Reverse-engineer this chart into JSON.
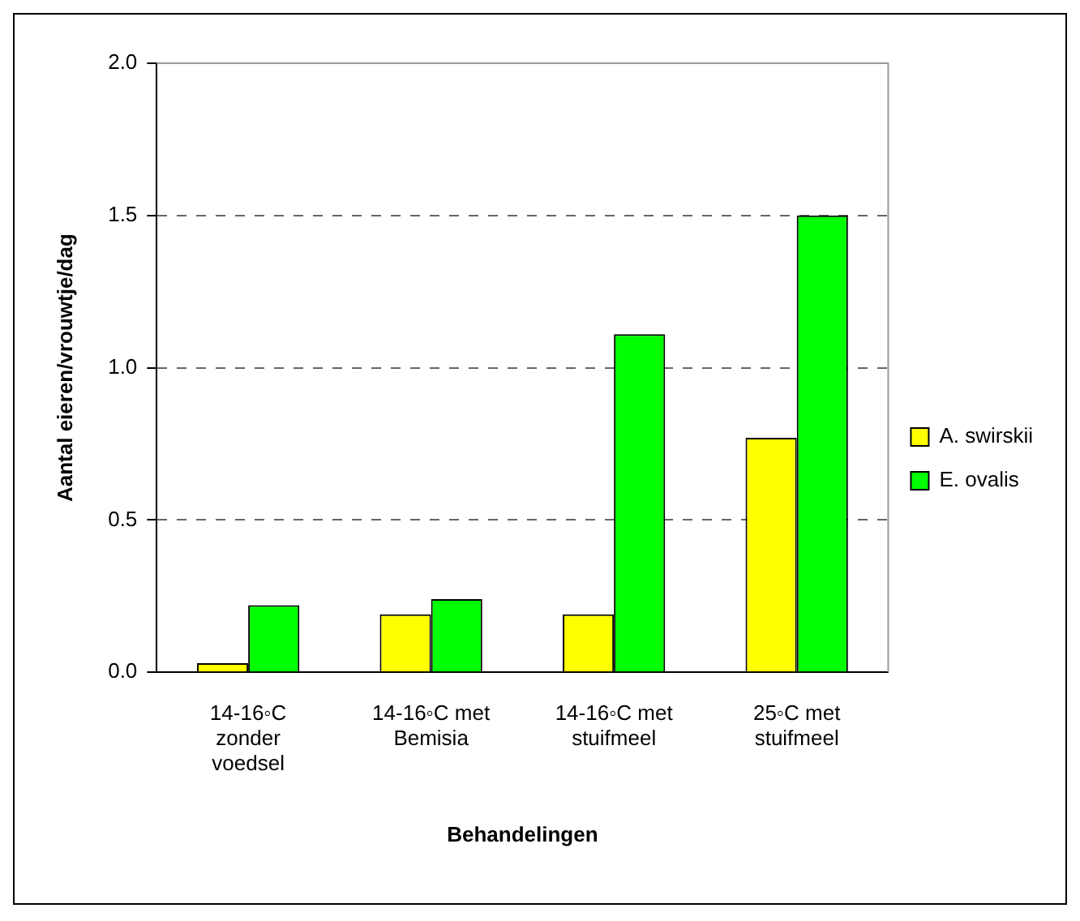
{
  "chart_data": {
    "type": "bar",
    "xlabel": "Behandelingen",
    "ylabel": "Aantal eieren/vrouwtje/dag",
    "categories": [
      "14-16◦C zonder voedsel",
      "14-16◦C met Bemisia",
      "14-16◦C met stuifmeel",
      "25◦C met stuifmeel"
    ],
    "series": [
      {
        "name": "A. swirskii",
        "color": "#ffff00",
        "values": [
          0.03,
          0.19,
          0.19,
          0.77
        ]
      },
      {
        "name": "E. ovalis",
        "color": "#00ff00",
        "values": [
          0.22,
          0.24,
          1.11,
          1.5
        ]
      }
    ],
    "ylim": [
      0,
      2
    ],
    "yticks": [
      {
        "value": 0,
        "label": "0.0"
      },
      {
        "value": 0.5,
        "label": "0.5"
      },
      {
        "value": 1,
        "label": "1.0"
      },
      {
        "value": 1.5,
        "label": "1.5"
      },
      {
        "value": 2,
        "label": "2.0"
      }
    ],
    "grid": "y",
    "legend": "right"
  }
}
